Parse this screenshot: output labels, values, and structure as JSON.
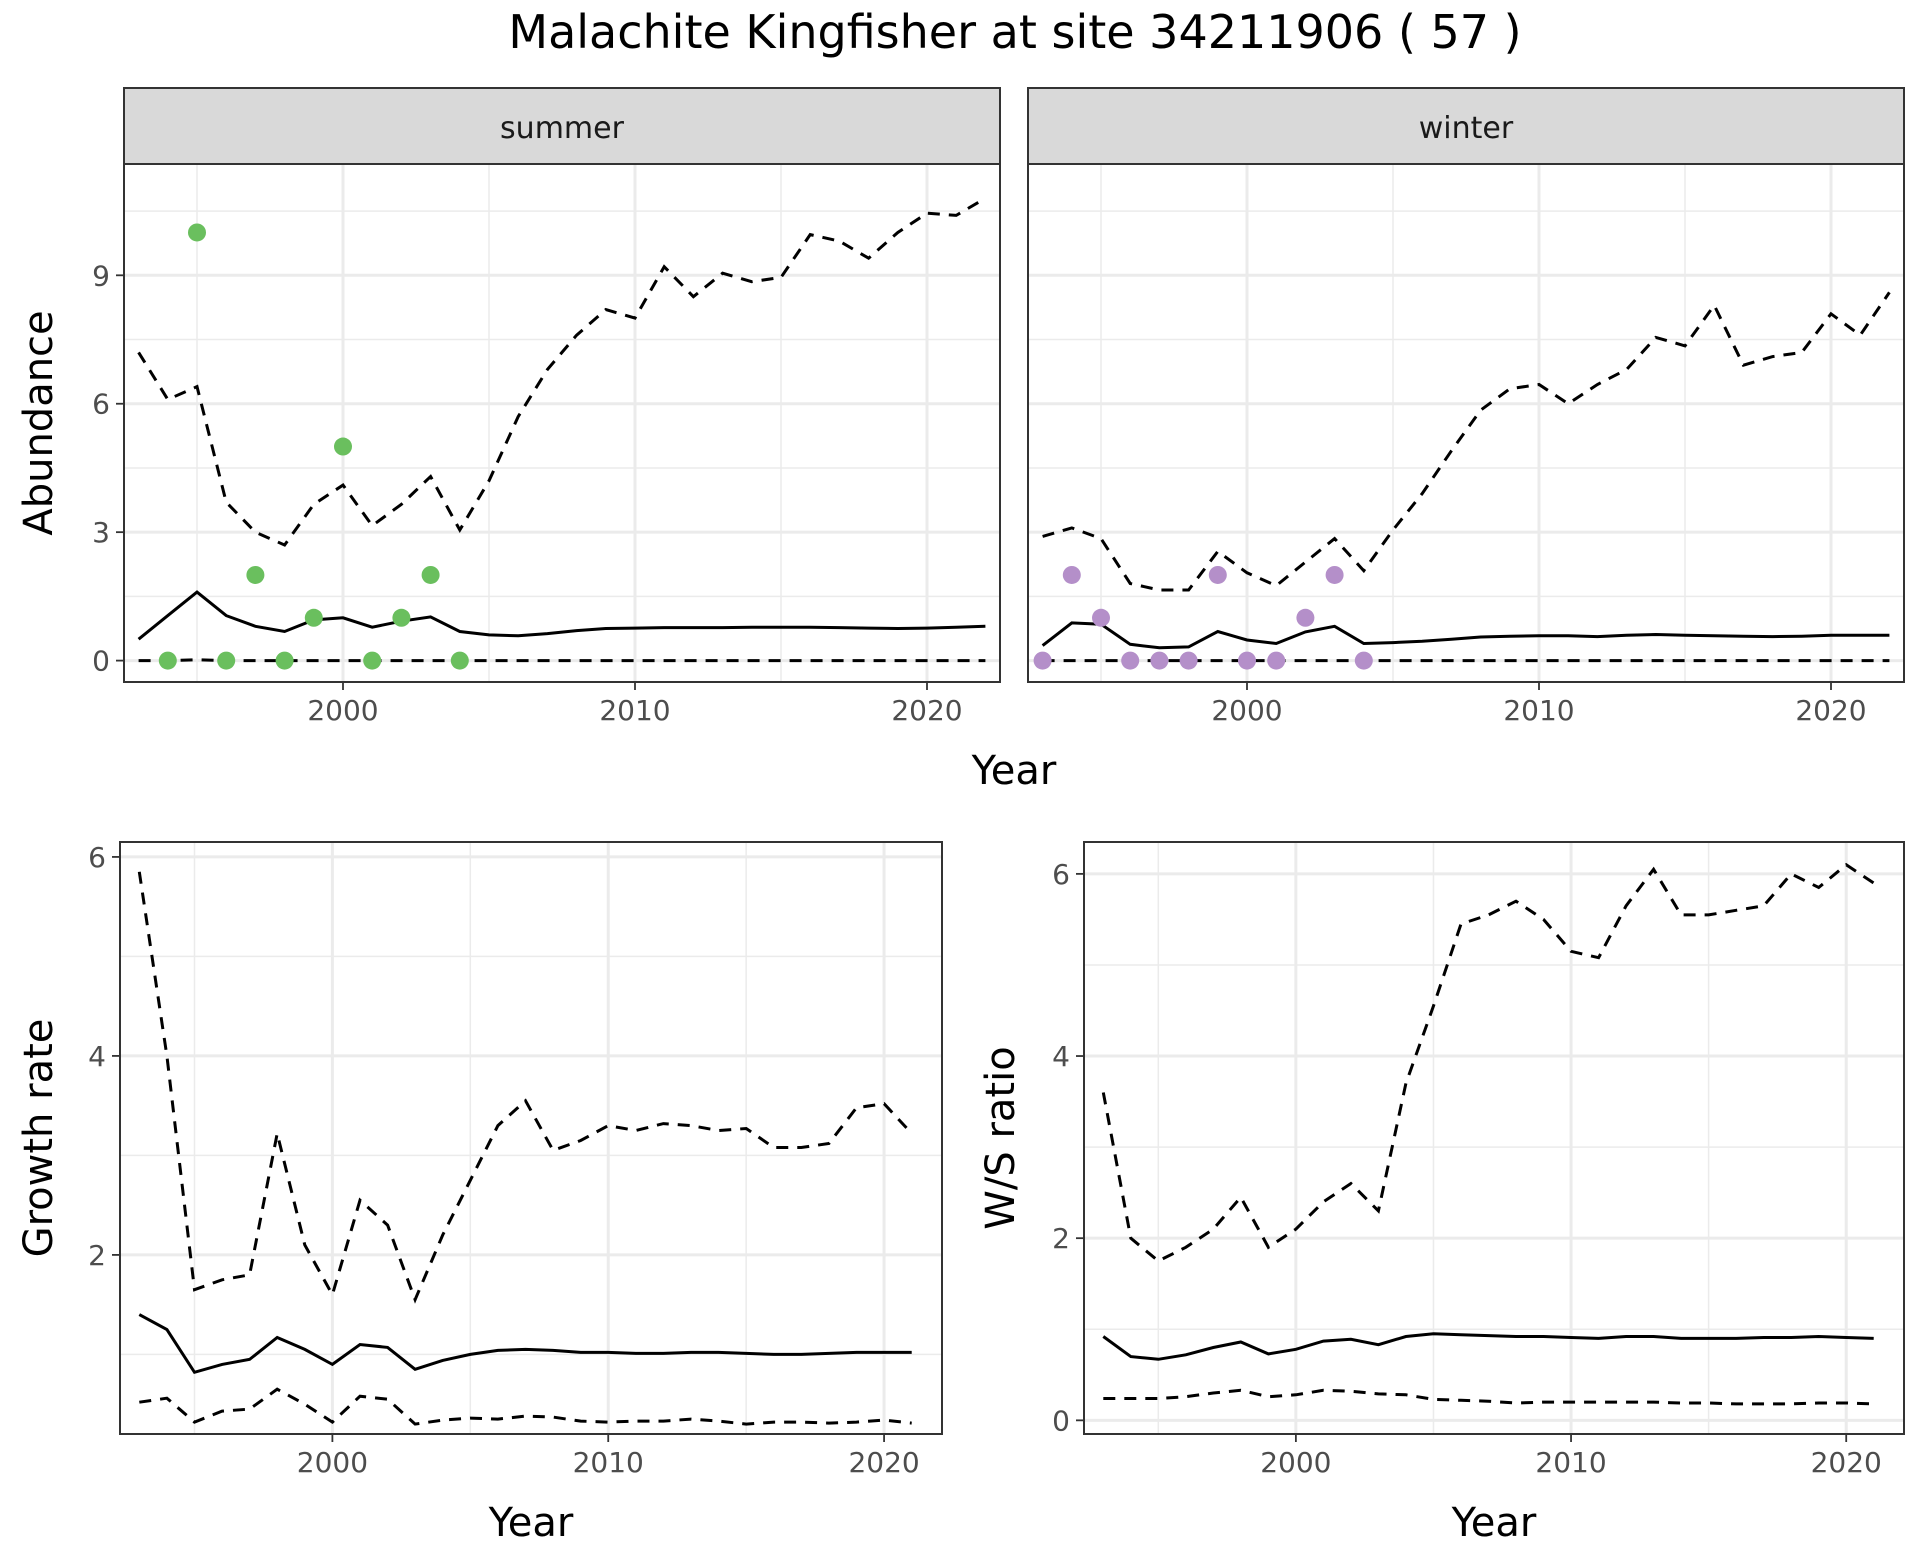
{
  "title": "Malachite Kingfisher at site 34211906 ( 57 )",
  "chart_data": [
    {
      "type": "line",
      "panel": "abundance",
      "facets": [
        "summer",
        "winter"
      ],
      "xlabel": "Year",
      "ylabel": "Abundance",
      "xlim": [
        1992.5,
        2022.5
      ],
      "ylim": [
        -0.5,
        11.6
      ],
      "x_ticks": [
        2000,
        2010,
        2020
      ],
      "x_tick_labels": [
        "2000",
        "2010",
        "2020"
      ],
      "y_ticks": [
        0,
        3,
        6,
        9
      ],
      "y_tick_labels": [
        "0",
        "3",
        "6",
        "9"
      ],
      "grid": true,
      "legend": "none",
      "x": [
        1993,
        1994,
        1995,
        1996,
        1997,
        1998,
        1999,
        2000,
        2001,
        2002,
        2003,
        2004,
        2005,
        2006,
        2007,
        2008,
        2009,
        2010,
        2011,
        2012,
        2013,
        2014,
        2015,
        2016,
        2017,
        2018,
        2019,
        2020,
        2021,
        2022
      ],
      "panels": [
        {
          "strip": "summer",
          "point_color": "#6abf5e",
          "observed": {
            "x": [
              1994,
              1995,
              1996,
              1997,
              1998,
              1999,
              2000,
              2001,
              2002,
              2003,
              2004
            ],
            "y": [
              0,
              10,
              0,
              2,
              0,
              1,
              5,
              0,
              1,
              2,
              0
            ]
          },
          "mean": [
            0.5,
            1.05,
            1.6,
            1.05,
            0.8,
            0.68,
            0.95,
            1.0,
            0.78,
            0.92,
            1.02,
            0.68,
            0.6,
            0.58,
            0.63,
            0.7,
            0.75,
            0.76,
            0.77,
            0.77,
            0.77,
            0.78,
            0.78,
            0.78,
            0.77,
            0.76,
            0.75,
            0.76,
            0.78,
            0.8
          ],
          "upper": [
            7.2,
            6.1,
            6.4,
            3.7,
            3.0,
            2.7,
            3.65,
            4.1,
            3.15,
            3.65,
            4.3,
            3.05,
            4.2,
            5.7,
            6.8,
            7.6,
            8.2,
            8.0,
            9.2,
            8.5,
            9.05,
            8.85,
            8.95,
            9.95,
            9.8,
            9.4,
            10.0,
            10.45,
            10.4,
            10.8
          ],
          "lower": [
            0,
            0,
            0.02,
            0,
            0,
            0,
            0,
            0,
            0,
            0,
            0,
            0,
            0,
            0,
            0,
            0,
            0,
            0,
            0,
            0,
            0,
            0,
            0,
            0,
            0,
            0,
            0,
            0,
            0,
            0
          ]
        },
        {
          "strip": "winter",
          "point_color": "#b48fc9",
          "observed": {
            "x": [
              1993,
              1994,
              1995,
              1996,
              1997,
              1998,
              1999,
              2000,
              2001,
              2002,
              2003,
              2004
            ],
            "y": [
              0,
              2,
              1,
              0,
              0,
              0,
              2,
              0,
              0,
              1,
              2,
              0
            ]
          },
          "mean": [
            0.35,
            0.88,
            0.85,
            0.38,
            0.3,
            0.32,
            0.68,
            0.48,
            0.4,
            0.67,
            0.8,
            0.4,
            0.42,
            0.45,
            0.5,
            0.55,
            0.57,
            0.58,
            0.58,
            0.56,
            0.59,
            0.61,
            0.59,
            0.58,
            0.57,
            0.56,
            0.57,
            0.59,
            0.59,
            0.59
          ],
          "upper": [
            2.9,
            3.1,
            2.85,
            1.8,
            1.65,
            1.65,
            2.55,
            2.05,
            1.75,
            2.3,
            2.85,
            2.1,
            3.05,
            3.9,
            4.9,
            5.85,
            6.35,
            6.45,
            6.0,
            6.45,
            6.8,
            7.55,
            7.35,
            8.3,
            6.9,
            7.1,
            7.2,
            8.1,
            7.6,
            8.6
          ],
          "lower": [
            0,
            0,
            0,
            0,
            0,
            0,
            0,
            0,
            0,
            0,
            0,
            0,
            0,
            0,
            0,
            0,
            0,
            0,
            0,
            0,
            0,
            0,
            0,
            0,
            0,
            0,
            0,
            0,
            0,
            0
          ]
        }
      ]
    },
    {
      "type": "line",
      "panel": "growth",
      "xlabel": "Year",
      "ylabel": "Growth rate",
      "xlim": [
        1992.3,
        2022.1
      ],
      "ylim": [
        0.2,
        6.15
      ],
      "x_ticks": [
        2000,
        2010,
        2020
      ],
      "x_tick_labels": [
        "2000",
        "2010",
        "2020"
      ],
      "y_ticks": [
        2,
        4,
        6
      ],
      "y_tick_labels": [
        "2",
        "4",
        "6"
      ],
      "grid": true,
      "legend": "none",
      "x": [
        1993,
        1994,
        1995,
        1996,
        1997,
        1998,
        1999,
        2000,
        2001,
        2002,
        2003,
        2004,
        2005,
        2006,
        2007,
        2008,
        2009,
        2010,
        2011,
        2012,
        2013,
        2014,
        2015,
        2016,
        2017,
        2018,
        2019,
        2020,
        2021
      ],
      "mean": [
        1.4,
        1.25,
        0.82,
        0.9,
        0.95,
        1.17,
        1.05,
        0.9,
        1.1,
        1.07,
        0.85,
        0.94,
        1.0,
        1.04,
        1.05,
        1.04,
        1.02,
        1.02,
        1.01,
        1.01,
        1.02,
        1.02,
        1.01,
        1.0,
        1.0,
        1.01,
        1.02,
        1.02,
        1.02
      ],
      "upper": [
        5.85,
        4.0,
        1.65,
        1.75,
        1.8,
        3.22,
        2.1,
        1.6,
        2.55,
        2.3,
        1.55,
        2.2,
        2.75,
        3.3,
        3.55,
        3.05,
        3.15,
        3.3,
        3.25,
        3.32,
        3.3,
        3.25,
        3.27,
        3.08,
        3.08,
        3.12,
        3.48,
        3.52,
        3.22
      ],
      "lower": [
        0.52,
        0.56,
        0.32,
        0.43,
        0.45,
        0.65,
        0.5,
        0.32,
        0.58,
        0.55,
        0.3,
        0.34,
        0.36,
        0.35,
        0.38,
        0.37,
        0.33,
        0.32,
        0.33,
        0.33,
        0.35,
        0.33,
        0.3,
        0.32,
        0.32,
        0.31,
        0.32,
        0.34,
        0.31
      ]
    },
    {
      "type": "line",
      "panel": "ratio",
      "xlabel": "Year",
      "ylabel": "W/S ratio",
      "xlim": [
        1992.3,
        2022.1
      ],
      "ylim": [
        -0.15,
        6.35
      ],
      "x_ticks": [
        2000,
        2010,
        2020
      ],
      "x_tick_labels": [
        "2000",
        "2010",
        "2020"
      ],
      "y_ticks": [
        0,
        2,
        4,
        6
      ],
      "y_tick_labels": [
        "0",
        "2",
        "4",
        "6"
      ],
      "grid": true,
      "legend": "none",
      "x": [
        1993,
        1994,
        1995,
        1996,
        1997,
        1998,
        1999,
        2000,
        2001,
        2002,
        2003,
        2004,
        2005,
        2006,
        2007,
        2008,
        2009,
        2010,
        2011,
        2012,
        2013,
        2014,
        2015,
        2016,
        2017,
        2018,
        2019,
        2020,
        2021
      ],
      "mean": [
        0.92,
        0.7,
        0.67,
        0.72,
        0.8,
        0.86,
        0.73,
        0.78,
        0.87,
        0.89,
        0.83,
        0.92,
        0.95,
        0.94,
        0.93,
        0.92,
        0.92,
        0.91,
        0.9,
        0.92,
        0.92,
        0.9,
        0.9,
        0.9,
        0.91,
        0.91,
        0.92,
        0.91,
        0.9
      ],
      "upper": [
        3.6,
        2.0,
        1.75,
        1.9,
        2.1,
        2.45,
        1.9,
        2.1,
        2.4,
        2.6,
        2.3,
        3.7,
        4.55,
        5.45,
        5.55,
        5.7,
        5.5,
        5.15,
        5.08,
        5.65,
        6.05,
        5.55,
        5.55,
        5.6,
        5.65,
        6.0,
        5.85,
        6.1,
        5.9
      ],
      "lower": [
        0.24,
        0.24,
        0.24,
        0.26,
        0.3,
        0.33,
        0.26,
        0.28,
        0.33,
        0.32,
        0.29,
        0.28,
        0.23,
        0.22,
        0.21,
        0.19,
        0.2,
        0.2,
        0.2,
        0.2,
        0.2,
        0.19,
        0.19,
        0.18,
        0.18,
        0.18,
        0.19,
        0.19,
        0.18
      ]
    }
  ]
}
